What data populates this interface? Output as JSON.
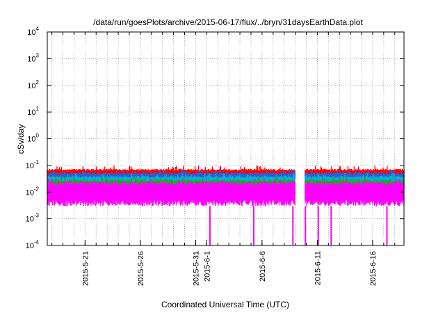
{
  "chart_data": {
    "type": "line",
    "title": "/data/run/goesPlots/archive/2015-06-17/flux/../bryn/31daysEarthData.plot",
    "xlabel": "Coordinated Universal Time (UTC)",
    "ylabel": "cSv/day",
    "y_scale": "log",
    "ylim": [
      0.0001,
      10000
    ],
    "xlim": [
      "2015-05-17T14:00",
      "2015-06-18T20:00"
    ],
    "grid": true,
    "y_ticks": [
      {
        "base": "10",
        "exp": "-4"
      },
      {
        "base": "10",
        "exp": "-3"
      },
      {
        "base": "10",
        "exp": "-2"
      },
      {
        "base": "10",
        "exp": "-1"
      },
      {
        "base": "10",
        "exp": "0"
      },
      {
        "base": "10",
        "exp": "1"
      },
      {
        "base": "10",
        "exp": "2"
      },
      {
        "base": "10",
        "exp": "3"
      },
      {
        "base": "10",
        "exp": "4"
      }
    ],
    "x_ticks": [
      {
        "date": "2015-05-21T00:00",
        "label": "2015-5-21"
      },
      {
        "date": "2015-05-26T00:00",
        "label": "2015-5-26"
      },
      {
        "date": "2015-05-31T00:00",
        "label": "2015-5-31"
      },
      {
        "date": "2015-06-01T00:00",
        "label": "2015-6-1"
      },
      {
        "date": "2015-06-06T00:00",
        "label": "2015-6-6"
      },
      {
        "date": "2015-06-11T00:00",
        "label": "2015-6-11"
      },
      {
        "date": "2015-06-16T00:00",
        "label": "2015-6-16"
      }
    ],
    "data_gaps": [
      [
        "2015-06-09T00:00",
        "2015-06-09T21:00"
      ]
    ],
    "series": [
      {
        "color": "#ff0000",
        "band": [
          0.03,
          0.075
        ]
      },
      {
        "color": "#2a5fd6",
        "band": [
          0.02,
          0.055
        ]
      },
      {
        "color": "#00b4d8",
        "band": [
          0.015,
          0.04
        ]
      },
      {
        "color": "#2ca02c",
        "band": [
          0.01,
          0.03
        ]
      },
      {
        "color": "#ff00ff",
        "band": [
          0.003,
          0.025
        ],
        "dropouts": [
          "2015-06-01T07:00",
          "2015-06-05T06:00",
          "2015-06-08T19:00",
          "2015-06-09T22:00",
          "2015-06-11T02:00",
          "2015-06-12T06:00",
          "2015-06-17T07:00"
        ]
      }
    ]
  }
}
